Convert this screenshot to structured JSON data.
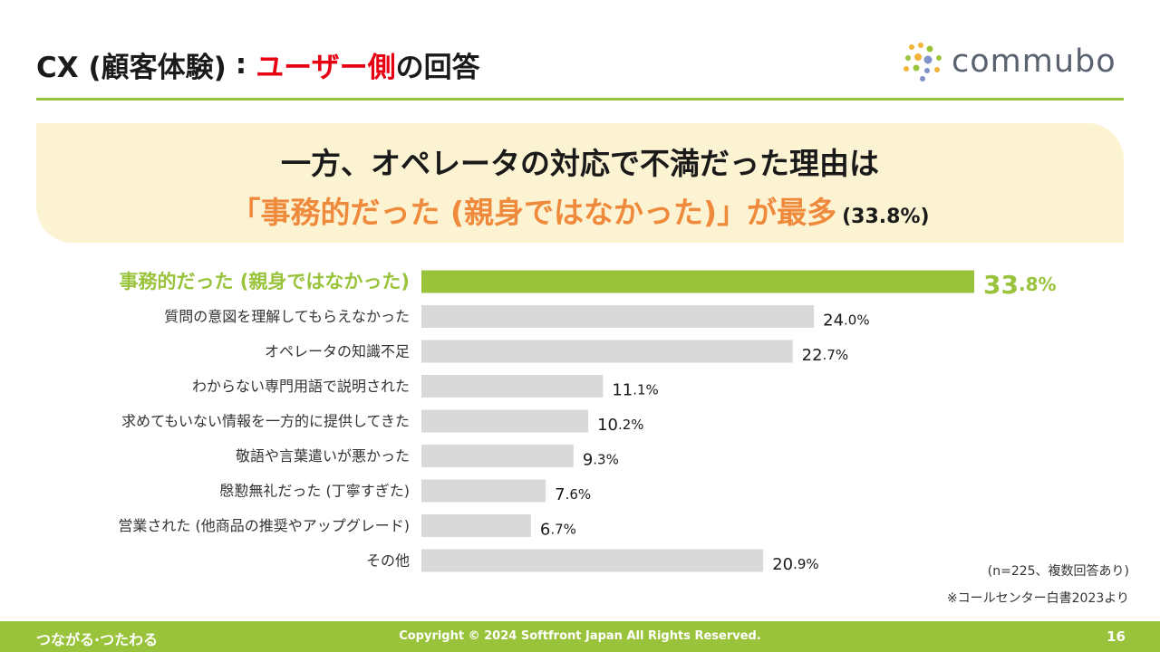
{
  "header": {
    "title_prefix": "CX (顧客体験)",
    "title_sep": ":",
    "title_accent": "ユーザー側",
    "title_suffix": "の回答",
    "logo_text": "commubo"
  },
  "banner": {
    "line1": "一方、オペレータの対応で不満だった理由は",
    "line2": "「事務的だった (親身ではなかった)」が最多",
    "line2_pct": "(33.8%)"
  },
  "chart_data": {
    "type": "bar",
    "orientation": "horizontal",
    "categories": [
      "事務的だった (親身ではなかった)",
      "質問の意図を理解してもらえなかった",
      "オペレータの知識不足",
      "わからない専門用語で説明された",
      "求めてもいない情報を一方的に提供してきた",
      "敬語や言葉遣いが悪かった",
      "慇懃無礼だった (丁寧すぎた)",
      "営業された (他商品の推奨やアップグレード)",
      "その他"
    ],
    "values": [
      33.8,
      24.0,
      22.7,
      11.1,
      10.2,
      9.3,
      7.6,
      6.7,
      20.9
    ],
    "value_int": [
      "33",
      "24",
      "22",
      "11",
      "10",
      "9",
      "7",
      "6",
      "20"
    ],
    "value_dec": [
      ".8%",
      ".0%",
      ".7%",
      ".1%",
      ".2%",
      ".3%",
      ".6%",
      ".7%",
      ".9%"
    ],
    "highlight_index": 0,
    "colors": {
      "highlight": "#9ac33c",
      "default": "#d9d9d9",
      "highlight_text": "#9ac33c"
    },
    "xlim": [
      0,
      33.8
    ]
  },
  "notes": {
    "sample": "(n=225、複数回答あり)",
    "source": "※コールセンター白書2023より"
  },
  "footer": {
    "tagline": "つながる·つたわる",
    "copyright": "Copyright © 2024 Softfront Japan All Rights Reserved.",
    "page": "16"
  }
}
